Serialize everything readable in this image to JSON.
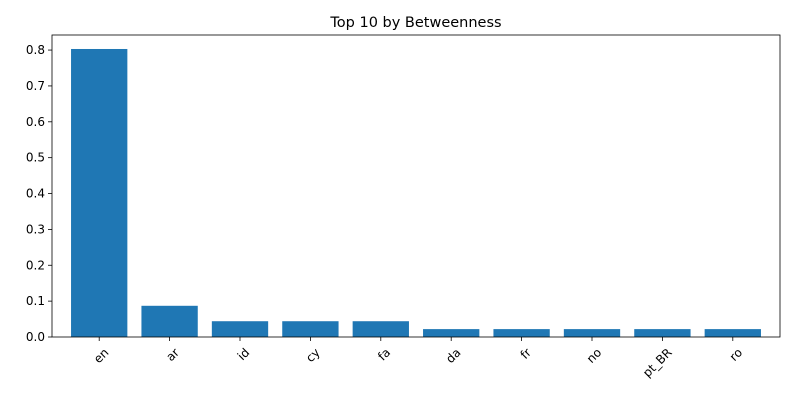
{
  "chart_data": {
    "type": "bar",
    "title": "Top 10 by Betweenness",
    "xlabel": "",
    "ylabel": "",
    "categories": [
      "en",
      "ar",
      "id",
      "cy",
      "fa",
      "da",
      "fr",
      "no",
      "pt_BR",
      "ro"
    ],
    "values": [
      0.803,
      0.087,
      0.044,
      0.044,
      0.044,
      0.022,
      0.022,
      0.022,
      0.022,
      0.022
    ],
    "ylim": [
      0,
      0.842
    ],
    "yticks": [
      "0.0",
      "0.1",
      "0.2",
      "0.3",
      "0.4",
      "0.5",
      "0.6",
      "0.7",
      "0.8"
    ],
    "bar_color": "#1f77b4",
    "grid": false,
    "legend": "none",
    "xtick_rotation": 45
  }
}
